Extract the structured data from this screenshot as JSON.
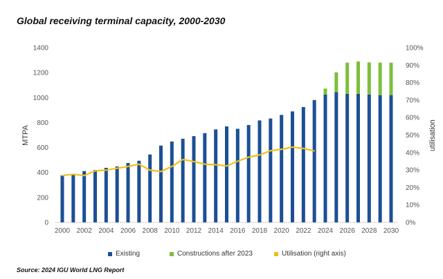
{
  "chart_data": {
    "type": "bar",
    "title": "Global receiving terminal capacity, 2000-2030",
    "source": "Source: 2024 IGU World LNG Report",
    "ylabel": "MTPA",
    "y2label": "utilisation",
    "ylim": [
      0,
      1400
    ],
    "y2lim": [
      0,
      100
    ],
    "yticks": [
      "0",
      "200",
      "400",
      "600",
      "800",
      "1000",
      "1200",
      "1400"
    ],
    "y2ticks": [
      "0%",
      "10%",
      "20%",
      "30%",
      "40%",
      "50%",
      "60%",
      "70%",
      "80%",
      "90%",
      "100%"
    ],
    "xticks": [
      "2000",
      "2002",
      "2004",
      "2006",
      "2008",
      "2010",
      "2012",
      "2014",
      "2016",
      "2018",
      "2020",
      "2022",
      "2024",
      "2026",
      "2028",
      "2030"
    ],
    "grid": false,
    "legend_placement": "bottom",
    "categories": [
      2000,
      2001,
      2002,
      2003,
      2004,
      2005,
      2006,
      2007,
      2008,
      2009,
      2010,
      2011,
      2012,
      2013,
      2014,
      2015,
      2016,
      2017,
      2018,
      2019,
      2020,
      2021,
      2022,
      2023,
      2024,
      2025,
      2026,
      2027,
      2028,
      2029,
      2030
    ],
    "series": [
      {
        "name": "Existing",
        "type": "bar",
        "stack": "cap",
        "axis": "left",
        "color": "#1c4f96",
        "values": [
          376,
          383,
          411,
          420,
          437,
          448,
          476,
          494,
          544,
          615,
          648,
          670,
          691,
          715,
          745,
          769,
          750,
          780,
          817,
          832,
          861,
          889,
          924,
          980,
          1024,
          1043,
          1030,
          1030,
          1024,
          1020,
          1020
        ]
      },
      {
        "name": "Constructions after 2023",
        "type": "bar",
        "stack": "cap",
        "axis": "left",
        "color": "#7dbf3b",
        "values": [
          0,
          0,
          0,
          0,
          0,
          0,
          0,
          0,
          0,
          0,
          0,
          0,
          0,
          0,
          0,
          0,
          0,
          0,
          0,
          0,
          0,
          0,
          0,
          0,
          48,
          159,
          250,
          259,
          258,
          260,
          260
        ]
      },
      {
        "name": "Utilisation (right axis)",
        "type": "line",
        "axis": "right",
        "color": "#f2bf1a",
        "values": [
          26.8,
          27.5,
          26.8,
          29.5,
          29.9,
          31,
          32,
          33.3,
          29.9,
          29.1,
          32,
          36,
          34.8,
          33.3,
          33,
          32.3,
          35,
          37.3,
          38.6,
          41,
          41.8,
          43.1,
          42.3,
          40.9,
          null,
          null,
          null,
          null,
          null,
          null,
          null
        ]
      }
    ]
  }
}
